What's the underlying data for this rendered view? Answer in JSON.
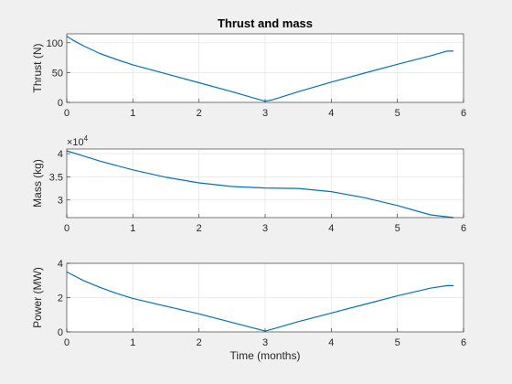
{
  "chart_data": [
    {
      "type": "line",
      "title": "Thrust and mass",
      "xlabel": "",
      "ylabel": "Thrust (N)",
      "xlim": [
        0,
        6
      ],
      "ylim": [
        0,
        115
      ],
      "xticks": [
        "0",
        "1",
        "2",
        "3",
        "4",
        "5",
        "6"
      ],
      "yticks": [
        "0",
        "50",
        "100"
      ],
      "grid": true,
      "series": [
        {
          "color": "#0072bd",
          "x": [
            0,
            0.1,
            0.25,
            0.5,
            0.75,
            1.0,
            1.5,
            2.0,
            2.5,
            2.9,
            3.0,
            3.1,
            3.5,
            4.0,
            4.5,
            5.0,
            5.5,
            5.75,
            5.85
          ],
          "y": [
            111,
            104,
            95,
            82,
            72,
            63,
            48,
            33,
            18,
            5,
            2,
            4,
            18,
            34,
            49,
            64,
            78,
            86,
            86
          ]
        }
      ]
    },
    {
      "type": "line",
      "title": "",
      "xlabel": "",
      "ylabel": "Mass (kg)",
      "exponent_base": "×10",
      "exponent_power": "4",
      "xlim": [
        0,
        6
      ],
      "ylim": [
        2.62,
        4.1
      ],
      "xticks": [
        "0",
        "1",
        "2",
        "3",
        "4",
        "5",
        "6"
      ],
      "yticks": [
        "3",
        "3.5",
        "4"
      ],
      "grid": true,
      "series": [
        {
          "color": "#0072bd",
          "x": [
            0,
            0.25,
            0.5,
            1.0,
            1.5,
            2.0,
            2.5,
            3.0,
            3.5,
            4.0,
            4.5,
            5.0,
            5.5,
            5.85
          ],
          "y": [
            4.06,
            3.95,
            3.84,
            3.65,
            3.49,
            3.37,
            3.29,
            3.26,
            3.25,
            3.18,
            3.05,
            2.88,
            2.68,
            2.62
          ]
        }
      ]
    },
    {
      "type": "line",
      "title": "",
      "xlabel": "Time (months)",
      "ylabel": "Power (MW)",
      "xlim": [
        0,
        6
      ],
      "ylim": [
        0,
        4
      ],
      "xticks": [
        "0",
        "1",
        "2",
        "3",
        "4",
        "5",
        "6"
      ],
      "yticks": [
        "0",
        "2",
        "4"
      ],
      "grid": true,
      "series": [
        {
          "color": "#0072bd",
          "x": [
            0,
            0.1,
            0.25,
            0.5,
            0.75,
            1.0,
            1.5,
            2.0,
            2.5,
            2.9,
            3.0,
            3.1,
            3.5,
            4.0,
            4.5,
            5.0,
            5.5,
            5.75,
            5.85
          ],
          "y": [
            3.5,
            3.3,
            3.0,
            2.6,
            2.25,
            1.95,
            1.5,
            1.05,
            0.55,
            0.15,
            0.05,
            0.15,
            0.6,
            1.1,
            1.6,
            2.1,
            2.55,
            2.7,
            2.7
          ]
        }
      ]
    }
  ]
}
